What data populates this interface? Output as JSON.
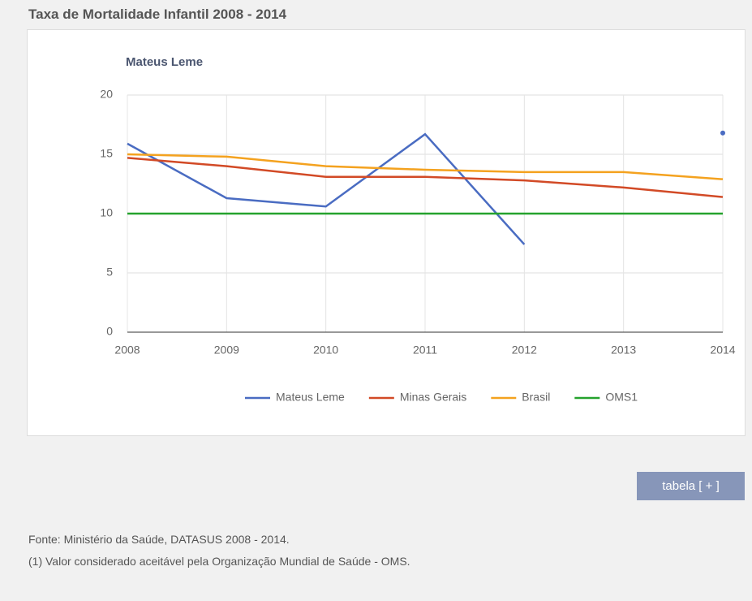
{
  "header": {
    "title": "Taxa de Mortalidade Infantil 2008 - 2014"
  },
  "chart_data": {
    "type": "line",
    "title": "Mateus Leme",
    "x": [
      2008,
      2009,
      2010,
      2011,
      2012,
      2013,
      2014
    ],
    "xlim": [
      2008,
      2014
    ],
    "xticks": [
      2008,
      2009,
      2010,
      2011,
      2012,
      2013,
      2014
    ],
    "ylim": [
      0,
      20
    ],
    "yticks": [
      0,
      5,
      10,
      15,
      20
    ],
    "grid": true,
    "legend": "bottom",
    "series": [
      {
        "name": "Mateus Leme",
        "color": "#4a6cc2",
        "values": [
          15.9,
          11.3,
          10.6,
          16.7,
          7.4,
          null,
          16.8
        ]
      },
      {
        "name": "Minas Gerais",
        "color": "#d24a26",
        "values": [
          14.7,
          14.0,
          13.1,
          13.1,
          12.8,
          12.2,
          11.4
        ]
      },
      {
        "name": "Brasil",
        "color": "#f4a21f",
        "values": [
          15.0,
          14.8,
          14.0,
          13.7,
          13.5,
          13.5,
          12.9
        ]
      },
      {
        "name": "OMS1",
        "color": "#25a22d",
        "values": [
          10,
          10,
          10,
          10,
          10,
          10,
          10
        ]
      }
    ]
  },
  "button": {
    "label": "tabela [ + ]"
  },
  "footer": {
    "source": "Fonte: Ministério da Saúde, DATASUS 2008 - 2014.",
    "note": "(1) Valor considerado aceitável pela Organização Mundial de Saúde - OMS."
  }
}
